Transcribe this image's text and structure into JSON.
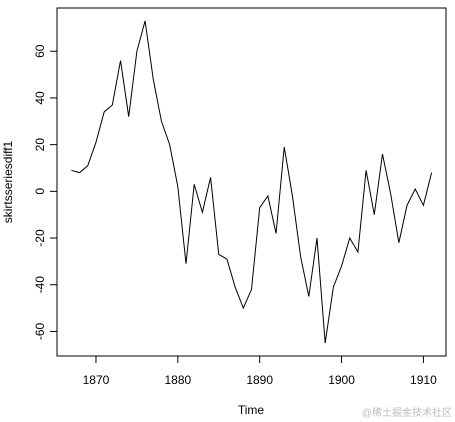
{
  "chart_data": {
    "type": "line",
    "xlabel": "Time",
    "ylabel": "skirtsseriesdiff1",
    "x": [
      1867,
      1868,
      1869,
      1870,
      1871,
      1872,
      1873,
      1874,
      1875,
      1876,
      1877,
      1878,
      1879,
      1880,
      1881,
      1882,
      1883,
      1884,
      1885,
      1886,
      1887,
      1888,
      1889,
      1890,
      1891,
      1892,
      1893,
      1894,
      1895,
      1896,
      1897,
      1898,
      1899,
      1900,
      1901,
      1902,
      1903,
      1904,
      1905,
      1906,
      1907,
      1908,
      1909,
      1910,
      1911
    ],
    "series": [
      {
        "name": "skirtsseriesdiff1",
        "color": "#000000",
        "values": [
          9,
          8,
          11,
          21,
          34,
          37,
          56,
          32,
          60,
          73,
          48,
          30,
          20,
          2,
          -31,
          3,
          -9,
          6,
          -27,
          -29,
          -41,
          -50,
          -42,
          -7,
          -2,
          -18,
          19,
          -2,
          -28,
          -45,
          -20,
          -65,
          -41,
          -32,
          -20,
          -26,
          9,
          -10,
          16,
          -1,
          -22,
          -6,
          1,
          -6,
          8
        ]
      }
    ],
    "xlim": [
      1865.24,
      1912.76
    ],
    "xticks": [
      1870,
      1880,
      1890,
      1900,
      1910
    ],
    "ylim": [
      -70.52,
      78.52
    ],
    "yticks": [
      -60,
      -40,
      -20,
      0,
      20,
      40,
      60
    ],
    "grid": false,
    "watermark": "@稀土掘金技术社区"
  }
}
